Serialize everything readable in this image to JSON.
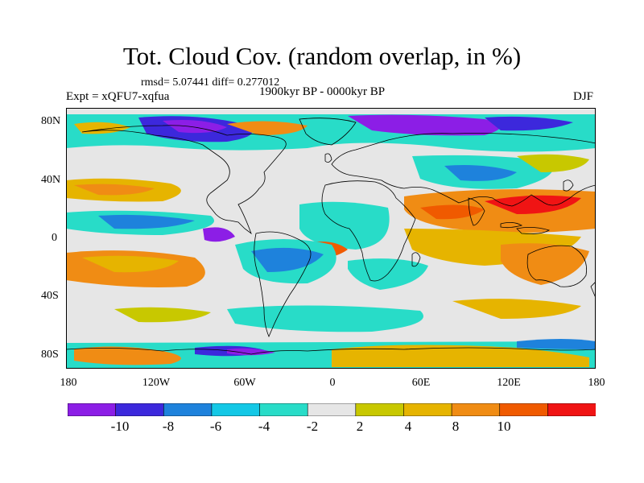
{
  "title": "Tot. Cloud Cov. (random overlap, in %)",
  "stats": "rmsd= 5.07441  diff= 0.277012",
  "experiment": "Expt = xQFU7-xqfua",
  "period": "1900kyr BP - 0000kyr BP",
  "season": "DJF",
  "map": {
    "projection": "cylindrical equidistant",
    "lat_ticks": [
      "80N",
      "40N",
      "0",
      "40S",
      "80S"
    ],
    "lon_ticks": [
      "180",
      "120W",
      "60W",
      "0",
      "60E",
      "120E",
      "180"
    ],
    "background_color": "#e6e6e6"
  },
  "colorbar": {
    "labels": [
      "-10",
      "-8",
      "-6",
      "-4",
      "-2",
      "2",
      "4",
      "8",
      "10"
    ],
    "colors": [
      "#8c1ee6",
      "#3c28dc",
      "#1e82dc",
      "#14c8e6",
      "#28dcc8",
      "#e6e6e6",
      "#c8c800",
      "#e6b400",
      "#f08c14",
      "#f05a00",
      "#f01414"
    ]
  }
}
